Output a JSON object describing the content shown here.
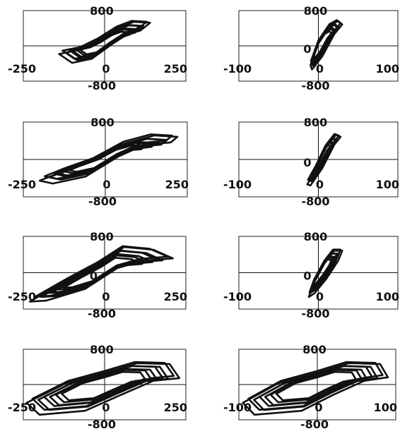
{
  "chart_data": [
    {
      "type": "line",
      "panel": "row1-col1",
      "xlim": [
        -250,
        250
      ],
      "ylim": [
        -800,
        800
      ],
      "grid": false,
      "tick_labels": {
        "x_left": "-250",
        "x_zero": "0",
        "x_right": "250",
        "y_top": "800",
        "y_zero": "",
        "y_bottom": "-800"
      },
      "series": [
        {
          "values_xy": [
            [
              -140,
              -150
            ],
            [
              -100,
              -350
            ],
            [
              -40,
              -260
            ],
            [
              20,
              60
            ],
            [
              70,
              300
            ],
            [
              110,
              380
            ],
            [
              140,
              560
            ],
            [
              90,
              580
            ],
            [
              40,
              440
            ],
            [
              -20,
              160
            ],
            [
              -80,
              -60
            ],
            [
              -140,
              -150
            ]
          ]
        }
      ]
    },
    {
      "type": "line",
      "panel": "row1-col2",
      "xlim": [
        -100,
        100
      ],
      "ylim": [
        -800,
        800
      ],
      "grid": false,
      "tick_labels": {
        "x_left": "-100",
        "x_zero": "0",
        "x_right": "100",
        "y_top": "800",
        "y_zero": "0",
        "y_bottom": "-800"
      },
      "series": [
        {
          "values_xy": [
            [
              -10,
              -400
            ],
            [
              -8,
              -500
            ],
            [
              5,
              -200
            ],
            [
              20,
              300
            ],
            [
              30,
              520
            ],
            [
              25,
              600
            ],
            [
              15,
              500
            ],
            [
              0,
              100
            ],
            [
              -10,
              -400
            ]
          ]
        }
      ]
    },
    {
      "type": "line",
      "panel": "row2-col1",
      "xlim": [
        -250,
        250
      ],
      "ylim": [
        -800,
        800
      ],
      "grid": false,
      "tick_labels": {
        "x_left": "-250",
        "x_zero": "0",
        "x_right": "250",
        "y_top": "800",
        "y_zero": "",
        "y_bottom": "-800"
      },
      "series": [
        {
          "values_xy": [
            [
              -200,
              -420
            ],
            [
              -160,
              -480
            ],
            [
              -60,
              -330
            ],
            [
              40,
              100
            ],
            [
              120,
              350
            ],
            [
              200,
              400
            ],
            [
              220,
              520
            ],
            [
              150,
              550
            ],
            [
              60,
              380
            ],
            [
              -40,
              0
            ],
            [
              -140,
              -250
            ],
            [
              -200,
              -420
            ]
          ]
        }
      ]
    },
    {
      "type": "line",
      "panel": "row2-col2",
      "xlim": [
        -100,
        100
      ],
      "ylim": [
        -800,
        800
      ],
      "grid": false,
      "tick_labels": {
        "x_left": "-100",
        "x_zero": "0",
        "x_right": "100",
        "y_top": "800",
        "y_zero": "0",
        "y_bottom": "-800"
      },
      "series": [
        {
          "values_xy": [
            [
              -14,
              -500
            ],
            [
              -10,
              -520
            ],
            [
              5,
              -150
            ],
            [
              20,
              350
            ],
            [
              28,
              520
            ],
            [
              22,
              560
            ],
            [
              10,
              300
            ],
            [
              -4,
              -200
            ],
            [
              -14,
              -500
            ]
          ]
        }
      ]
    },
    {
      "type": "line",
      "panel": "row3-col1",
      "xlim": [
        -250,
        250
      ],
      "ylim": [
        -800,
        800
      ],
      "grid": false,
      "tick_labels": {
        "x_left": "-250",
        "x_zero": "0",
        "x_right": "250",
        "y_top": "800",
        "y_zero": "0",
        "y_bottom": "-800"
      },
      "series": [
        {
          "values_xy": [
            [
              -230,
              -600
            ],
            [
              -180,
              -580
            ],
            [
              -60,
              -320
            ],
            [
              40,
              140
            ],
            [
              120,
              300
            ],
            [
              210,
              350
            ],
            [
              150,
              540
            ],
            [
              60,
              600
            ],
            [
              -20,
              230
            ],
            [
              -120,
              -150
            ],
            [
              -230,
              -600
            ]
          ]
        }
      ]
    },
    {
      "type": "line",
      "panel": "row3-col2",
      "xlim": [
        -100,
        100
      ],
      "ylim": [
        -800,
        800
      ],
      "grid": false,
      "tick_labels": {
        "x_left": "-100",
        "x_zero": "0",
        "x_right": "100",
        "y_top": "800",
        "y_zero": "0",
        "y_bottom": "-800"
      },
      "series": [
        {
          "values_xy": [
            [
              -12,
              -500
            ],
            [
              -5,
              -420
            ],
            [
              10,
              -100
            ],
            [
              25,
              300
            ],
            [
              30,
              520
            ],
            [
              20,
              520
            ],
            [
              8,
              250
            ],
            [
              -6,
              -200
            ],
            [
              -12,
              -500
            ]
          ]
        }
      ]
    },
    {
      "type": "line",
      "panel": "row4-col1",
      "xlim": [
        -250,
        250
      ],
      "ylim": [
        -800,
        800
      ],
      "grid": false,
      "tick_labels": {
        "x_left": "-250",
        "x_zero": "0",
        "x_right": "250",
        "y_top": "800",
        "y_zero": "",
        "y_bottom": "-800"
      },
      "series": [
        {
          "values_xy": [
            [
              -240,
              -380
            ],
            [
              -200,
              -650
            ],
            [
              -60,
              -560
            ],
            [
              50,
              -200
            ],
            [
              150,
              120
            ],
            [
              230,
              180
            ],
            [
              200,
              500
            ],
            [
              100,
              520
            ],
            [
              0,
              300
            ],
            [
              -120,
              60
            ],
            [
              -240,
              -380
            ]
          ]
        }
      ]
    },
    {
      "type": "line",
      "panel": "row4-col2",
      "xlim": [
        -100,
        100
      ],
      "ylim": [
        -800,
        800
      ],
      "grid": false,
      "tick_labels": {
        "x_left": "-100",
        "x_zero": "0",
        "x_right": "100",
        "y_top": "800",
        "y_zero": "",
        "y_bottom": "-800"
      },
      "series": [
        {
          "values_xy": [
            [
              -95,
              -380
            ],
            [
              -80,
              -650
            ],
            [
              -20,
              -560
            ],
            [
              20,
              -200
            ],
            [
              60,
              120
            ],
            [
              90,
              200
            ],
            [
              80,
              500
            ],
            [
              40,
              520
            ],
            [
              0,
              300
            ],
            [
              -50,
              60
            ],
            [
              -95,
              -380
            ]
          ]
        }
      ]
    }
  ]
}
